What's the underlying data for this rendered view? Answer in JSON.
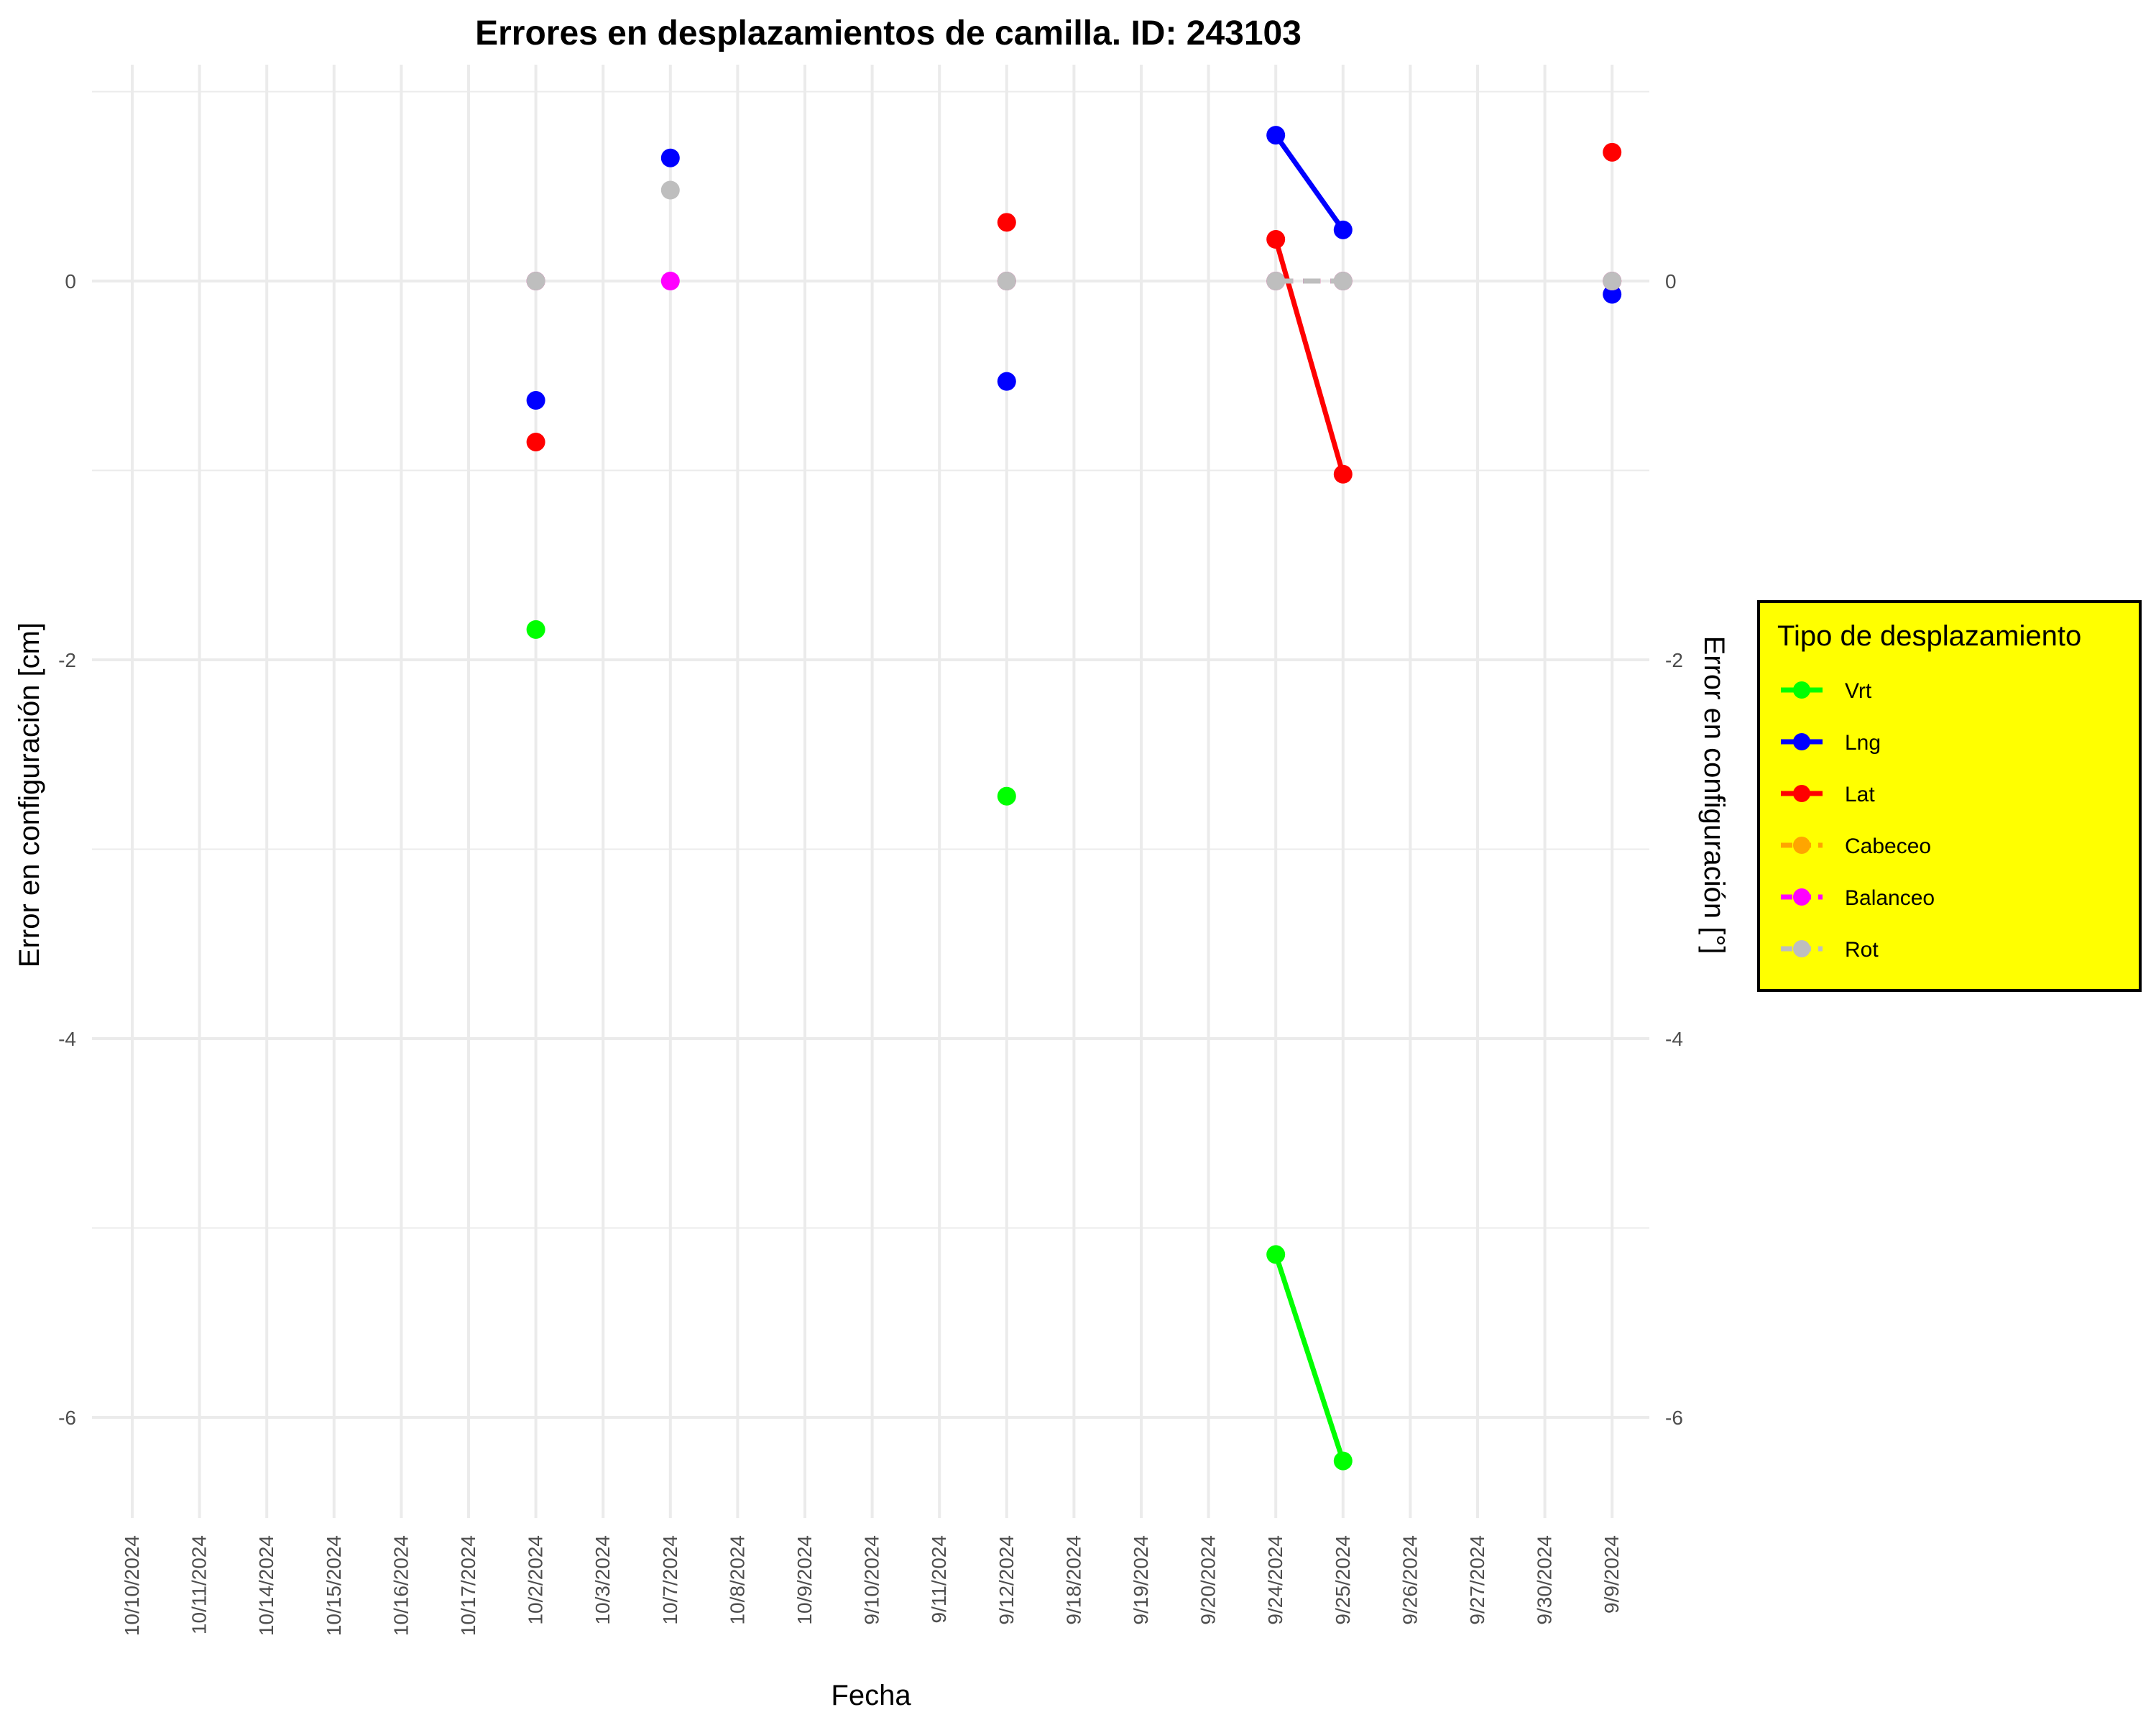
{
  "chart_data": {
    "type": "line",
    "title": "Errores en desplazamientos de camilla. ID: 243103",
    "xlabel": "Fecha",
    "ylabel": "Error en configuración [cm]",
    "ylabel_right": "Error en configuración [°]",
    "categories": [
      "10/10/2024",
      "10/11/2024",
      "10/14/2024",
      "10/15/2024",
      "10/16/2024",
      "10/17/2024",
      "10/2/2024",
      "10/3/2024",
      "10/7/2024",
      "10/8/2024",
      "10/9/2024",
      "9/10/2024",
      "9/11/2024",
      "9/12/2024",
      "9/18/2024",
      "9/19/2024",
      "9/20/2024",
      "9/24/2024",
      "9/25/2024",
      "9/26/2024",
      "9/27/2024",
      "9/30/2024",
      "9/9/2024"
    ],
    "ylim": [
      -6.5,
      1.1
    ],
    "yticks": [
      0,
      -2,
      -4,
      -6
    ],
    "ytick_labels": [
      "0",
      "-2",
      "-4",
      "-6"
    ],
    "grid": true,
    "legend": {
      "title": "Tipo de desplazamiento",
      "position": "right",
      "background": "#ffff00",
      "labels": [
        "Vrt",
        "Lng",
        "Lat",
        "Cabeceo",
        "Balanceo",
        "Rot"
      ]
    },
    "series": [
      {
        "name": "Vrt",
        "color": "#00ff00",
        "dashed": false,
        "points": [
          [
            "10/2/2024",
            -1.84
          ],
          [
            "9/12/2024",
            -2.72
          ],
          [
            "9/24/2024",
            -5.14
          ],
          [
            "9/25/2024",
            -6.23
          ]
        ]
      },
      {
        "name": "Lng",
        "color": "#0000ff",
        "dashed": false,
        "points": [
          [
            "10/2/2024",
            -0.63
          ],
          [
            "10/7/2024",
            0.65
          ],
          [
            "9/12/2024",
            -0.53
          ],
          [
            "9/24/2024",
            0.77
          ],
          [
            "9/25/2024",
            0.27
          ],
          [
            "9/9/2024",
            -0.07
          ]
        ]
      },
      {
        "name": "Lat",
        "color": "#ff0000",
        "dashed": false,
        "points": [
          [
            "10/2/2024",
            -0.85
          ],
          [
            "9/12/2024",
            0.31
          ],
          [
            "9/24/2024",
            0.22
          ],
          [
            "9/25/2024",
            -1.02
          ],
          [
            "9/9/2024",
            0.68
          ]
        ]
      },
      {
        "name": "Cabeceo",
        "color": "#ffa500",
        "dashed": true,
        "points": [
          [
            "10/2/2024",
            0
          ],
          [
            "9/12/2024",
            0
          ],
          [
            "9/24/2024",
            0
          ],
          [
            "9/25/2024",
            0
          ],
          [
            "9/9/2024",
            0
          ]
        ]
      },
      {
        "name": "Balanceo",
        "color": "#ff00ff",
        "dashed": true,
        "points": [
          [
            "10/2/2024",
            0
          ],
          [
            "10/7/2024",
            0
          ],
          [
            "9/12/2024",
            0
          ],
          [
            "9/24/2024",
            0
          ],
          [
            "9/25/2024",
            0
          ],
          [
            "9/9/2024",
            0
          ]
        ]
      },
      {
        "name": "Rot",
        "color": "#bebebe",
        "dashed": true,
        "points": [
          [
            "10/2/2024",
            0
          ],
          [
            "10/7/2024",
            0.48
          ],
          [
            "9/12/2024",
            0
          ],
          [
            "9/24/2024",
            0
          ],
          [
            "9/25/2024",
            0
          ],
          [
            "9/9/2024",
            0
          ]
        ]
      }
    ]
  }
}
